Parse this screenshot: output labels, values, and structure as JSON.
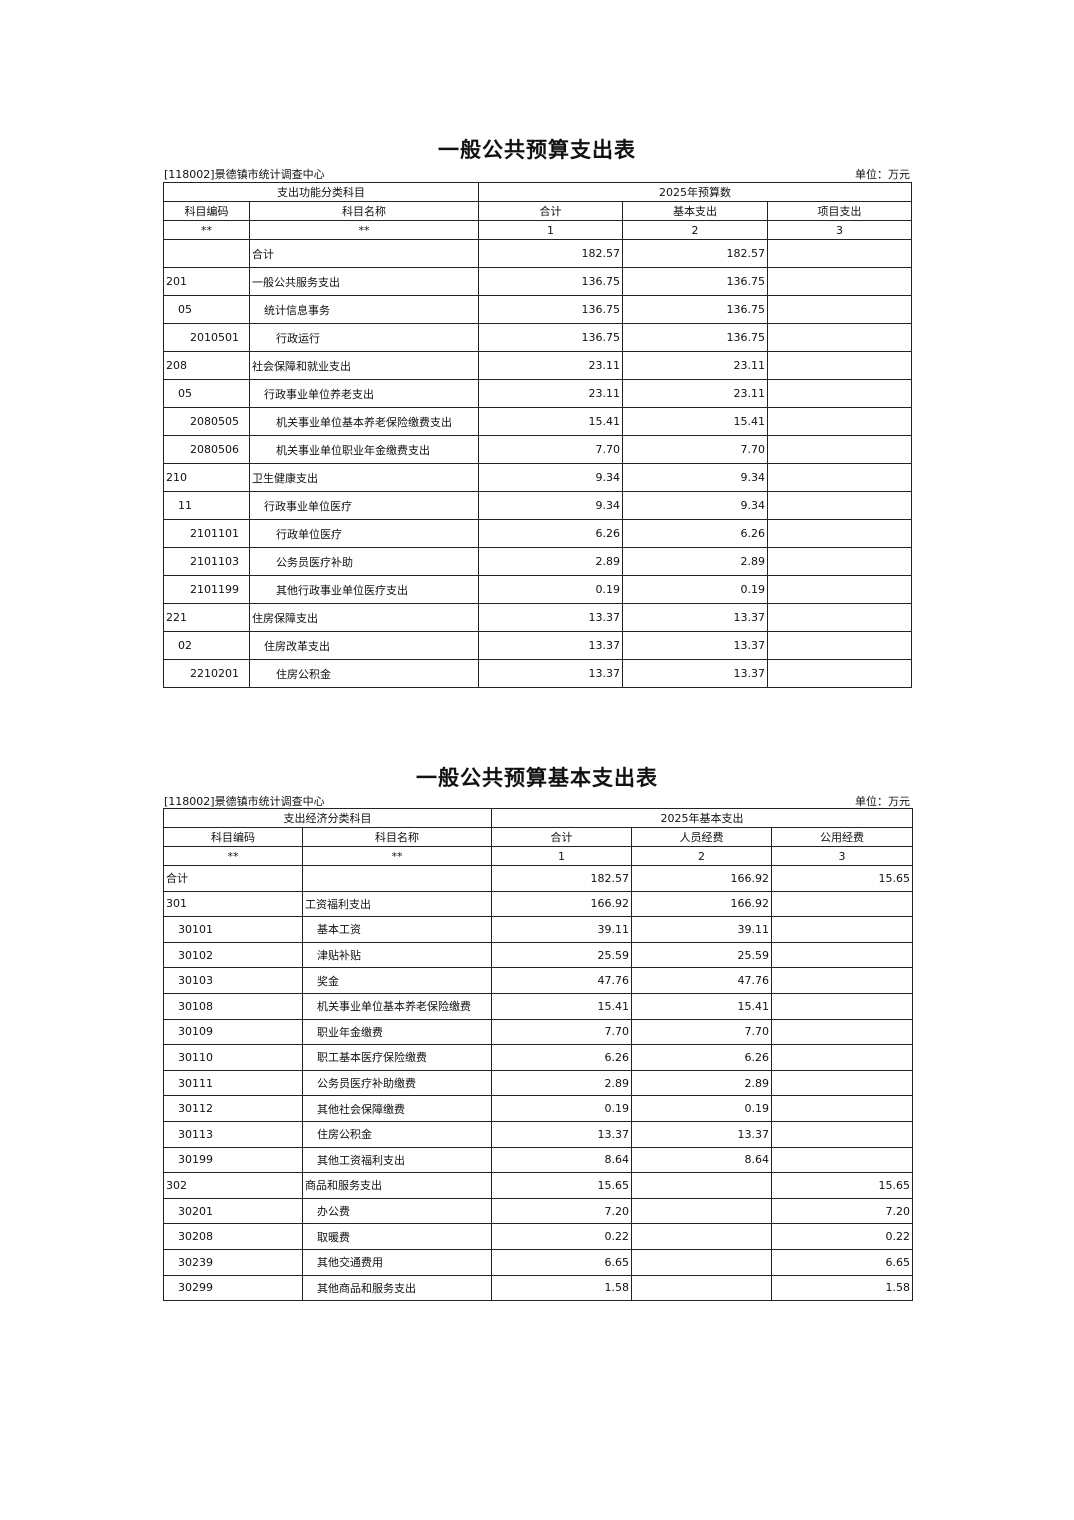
{
  "table1": {
    "title": "一般公共预算支出表",
    "org": "[118002]景德镇市统计调查中心",
    "unit": "单位：万元",
    "group_left": "支出功能分类科目",
    "group_right": "2025年预算数",
    "headers": [
      "科目编码",
      "科目名称",
      "合计",
      "基本支出",
      "项目支出"
    ],
    "index_row": [
      "**",
      "**",
      "1",
      "2",
      "3"
    ],
    "rows": [
      {
        "code": "",
        "name": "合计",
        "total": "182.57",
        "basic": "182.57",
        "project": "",
        "level": 0
      },
      {
        "code": "201",
        "name": "一般公共服务支出",
        "total": "136.75",
        "basic": "136.75",
        "project": "",
        "level": 0
      },
      {
        "code": "05",
        "name": "统计信息事务",
        "total": "136.75",
        "basic": "136.75",
        "project": "",
        "level": 1
      },
      {
        "code": "2010501",
        "name": "行政运行",
        "total": "136.75",
        "basic": "136.75",
        "project": "",
        "level": 2
      },
      {
        "code": "208",
        "name": "社会保障和就业支出",
        "total": "23.11",
        "basic": "23.11",
        "project": "",
        "level": 0
      },
      {
        "code": "05",
        "name": "行政事业单位养老支出",
        "total": "23.11",
        "basic": "23.11",
        "project": "",
        "level": 1
      },
      {
        "code": "2080505",
        "name": "机关事业单位基本养老保险缴费支出",
        "total": "15.41",
        "basic": "15.41",
        "project": "",
        "level": 2
      },
      {
        "code": "2080506",
        "name": "机关事业单位职业年金缴费支出",
        "total": "7.70",
        "basic": "7.70",
        "project": "",
        "level": 2
      },
      {
        "code": "210",
        "name": "卫生健康支出",
        "total": "9.34",
        "basic": "9.34",
        "project": "",
        "level": 0
      },
      {
        "code": "11",
        "name": "行政事业单位医疗",
        "total": "9.34",
        "basic": "9.34",
        "project": "",
        "level": 1
      },
      {
        "code": "2101101",
        "name": "行政单位医疗",
        "total": "6.26",
        "basic": "6.26",
        "project": "",
        "level": 2
      },
      {
        "code": "2101103",
        "name": "公务员医疗补助",
        "total": "2.89",
        "basic": "2.89",
        "project": "",
        "level": 2
      },
      {
        "code": "2101199",
        "name": "其他行政事业单位医疗支出",
        "total": "0.19",
        "basic": "0.19",
        "project": "",
        "level": 2
      },
      {
        "code": "221",
        "name": "住房保障支出",
        "total": "13.37",
        "basic": "13.37",
        "project": "",
        "level": 0
      },
      {
        "code": "02",
        "name": "住房改革支出",
        "total": "13.37",
        "basic": "13.37",
        "project": "",
        "level": 1
      },
      {
        "code": "2210201",
        "name": "住房公积金",
        "total": "13.37",
        "basic": "13.37",
        "project": "",
        "level": 2
      }
    ]
  },
  "table2": {
    "title": "一般公共预算基本支出表",
    "org": "[118002]景德镇市统计调查中心",
    "unit": "单位：万元",
    "group_left": "支出经济分类科目",
    "group_right": "2025年基本支出",
    "headers": [
      "科目编码",
      "科目名称",
      "合计",
      "人员经费",
      "公用经费"
    ],
    "index_row": [
      "**",
      "**",
      "1",
      "2",
      "3"
    ],
    "rows": [
      {
        "code": "合计",
        "name": "",
        "total": "182.57",
        "personnel": "166.92",
        "public": "15.65",
        "level": 0
      },
      {
        "code": "301",
        "name": "工资福利支出",
        "total": "166.92",
        "personnel": "166.92",
        "public": "",
        "level": 0
      },
      {
        "code": "30101",
        "name": "基本工资",
        "total": "39.11",
        "personnel": "39.11",
        "public": "",
        "level": 1
      },
      {
        "code": "30102",
        "name": "津贴补贴",
        "total": "25.59",
        "personnel": "25.59",
        "public": "",
        "level": 1
      },
      {
        "code": "30103",
        "name": "奖金",
        "total": "47.76",
        "personnel": "47.76",
        "public": "",
        "level": 1
      },
      {
        "code": "30108",
        "name": "机关事业单位基本养老保险缴费",
        "total": "15.41",
        "personnel": "15.41",
        "public": "",
        "level": 1
      },
      {
        "code": "30109",
        "name": "职业年金缴费",
        "total": "7.70",
        "personnel": "7.70",
        "public": "",
        "level": 1
      },
      {
        "code": "30110",
        "name": "职工基本医疗保险缴费",
        "total": "6.26",
        "personnel": "6.26",
        "public": "",
        "level": 1
      },
      {
        "code": "30111",
        "name": "公务员医疗补助缴费",
        "total": "2.89",
        "personnel": "2.89",
        "public": "",
        "level": 1
      },
      {
        "code": "30112",
        "name": "其他社会保障缴费",
        "total": "0.19",
        "personnel": "0.19",
        "public": "",
        "level": 1
      },
      {
        "code": "30113",
        "name": "住房公积金",
        "total": "13.37",
        "personnel": "13.37",
        "public": "",
        "level": 1
      },
      {
        "code": "30199",
        "name": "其他工资福利支出",
        "total": "8.64",
        "personnel": "8.64",
        "public": "",
        "level": 1
      },
      {
        "code": "302",
        "name": "商品和服务支出",
        "total": "15.65",
        "personnel": "",
        "public": "15.65",
        "level": 0
      },
      {
        "code": "30201",
        "name": "办公费",
        "total": "7.20",
        "personnel": "",
        "public": "7.20",
        "level": 1
      },
      {
        "code": "30208",
        "name": "取暖费",
        "total": "0.22",
        "personnel": "",
        "public": "0.22",
        "level": 1
      },
      {
        "code": "30239",
        "name": "其他交通费用",
        "total": "6.65",
        "personnel": "",
        "public": "6.65",
        "level": 1
      },
      {
        "code": "30299",
        "name": "其他商品和服务支出",
        "total": "1.58",
        "personnel": "",
        "public": "1.58",
        "level": 1
      }
    ]
  }
}
